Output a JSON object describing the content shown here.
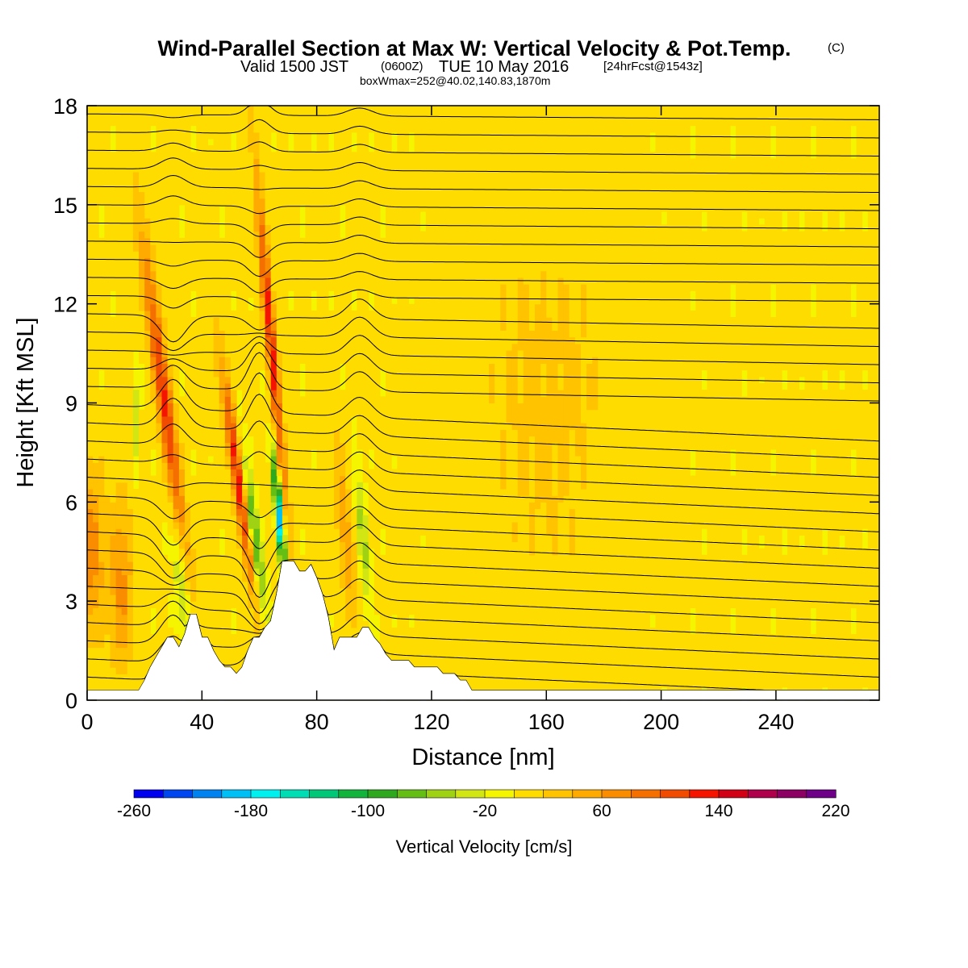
{
  "chart_data": {
    "type": "heatmap",
    "title": "Wind-Parallel Section at Max W: Vertical Velocity & Pot.Temp.",
    "title_mark": "(C)",
    "valid_prefix": "Valid 1500 JST",
    "valid_utc": "(0600Z)",
    "valid_date": "TUE 10 May 2016",
    "forecast": "[24hrFcst@1543z]",
    "box_info": "boxWmax=252@40.02,140.83,1870m",
    "xlabel": "Distance [nm]",
    "ylabel": "Height [Kft MSL]",
    "xlim": [
      0,
      276
    ],
    "ylim": [
      0,
      18
    ],
    "x_ticks": [
      0,
      40,
      80,
      120,
      160,
      200,
      240
    ],
    "x_tick_labels": [
      "0",
      "40",
      "80",
      "120",
      "160",
      "200",
      "240"
    ],
    "y_ticks": [
      0,
      3,
      6,
      9,
      12,
      15,
      18
    ],
    "y_tick_labels": [
      "0",
      "3",
      "6",
      "9",
      "12",
      "15",
      "18"
    ],
    "colorbar": {
      "title": "Vertical Velocity [cm/s]",
      "min": -260,
      "max": 220,
      "step": 20,
      "tick_labels": [
        "-260",
        "-180",
        "-100",
        "-20",
        "60",
        "140",
        "220"
      ],
      "colors": [
        "#0000ee",
        "#0046f0",
        "#0082f0",
        "#00bff5",
        "#00f0f0",
        "#00dcb4",
        "#00c878",
        "#12b43c",
        "#2ea81e",
        "#64be14",
        "#a0d214",
        "#d2e614",
        "#f5f500",
        "#ffdc00",
        "#ffc300",
        "#ffaa00",
        "#fa8c00",
        "#f56e00",
        "#f04b00",
        "#f51400",
        "#d20014",
        "#af004b",
        "#8c0064",
        "#6e0087"
      ]
    },
    "terrain_kft": [
      [
        0,
        0.3
      ],
      [
        10,
        0.3
      ],
      [
        18,
        0.3
      ],
      [
        20,
        0.6
      ],
      [
        22,
        1.0
      ],
      [
        24,
        1.3
      ],
      [
        26,
        1.6
      ],
      [
        28,
        1.9
      ],
      [
        30,
        1.9
      ],
      [
        32,
        1.6
      ],
      [
        34,
        2.0
      ],
      [
        36,
        2.6
      ],
      [
        38,
        2.6
      ],
      [
        40,
        1.9
      ],
      [
        42,
        1.9
      ],
      [
        44,
        1.5
      ],
      [
        46,
        1.2
      ],
      [
        48,
        1.0
      ],
      [
        50,
        1.0
      ],
      [
        52,
        0.8
      ],
      [
        54,
        1.0
      ],
      [
        56,
        1.5
      ],
      [
        58,
        1.9
      ],
      [
        60,
        1.9
      ],
      [
        62,
        2.2
      ],
      [
        64,
        2.4
      ],
      [
        66,
        3.2
      ],
      [
        68,
        4.2
      ],
      [
        70,
        4.2
      ],
      [
        72,
        4.2
      ],
      [
        74,
        3.9
      ],
      [
        76,
        3.9
      ],
      [
        78,
        4.1
      ],
      [
        80,
        3.7
      ],
      [
        82,
        3.2
      ],
      [
        84,
        2.5
      ],
      [
        86,
        1.5
      ],
      [
        88,
        1.9
      ],
      [
        90,
        1.9
      ],
      [
        92,
        1.9
      ],
      [
        94,
        1.9
      ],
      [
        96,
        2.2
      ],
      [
        98,
        2.2
      ],
      [
        100,
        1.9
      ],
      [
        102,
        1.7
      ],
      [
        104,
        1.4
      ],
      [
        106,
        1.2
      ],
      [
        108,
        1.2
      ],
      [
        110,
        1.2
      ],
      [
        112,
        1.2
      ],
      [
        114,
        1.0
      ],
      [
        116,
        1.0
      ],
      [
        118,
        1.0
      ],
      [
        120,
        1.0
      ],
      [
        122,
        1.0
      ],
      [
        124,
        0.8
      ],
      [
        126,
        0.8
      ],
      [
        128,
        0.8
      ],
      [
        130,
        0.6
      ],
      [
        132,
        0.6
      ],
      [
        134,
        0.3
      ],
      [
        136,
        0.3
      ],
      [
        140,
        0.3
      ],
      [
        276,
        0.3
      ]
    ],
    "updrafts": [
      {
        "x": 1,
        "z": 4.5,
        "amp": 70,
        "sx": 5,
        "sz": 2.5,
        "tilt": 0.0
      },
      {
        "x": 12,
        "z": 3.5,
        "amp": 60,
        "sx": 4,
        "sz": 2.5,
        "tilt": 0.0
      },
      {
        "x": 27,
        "z": 9.0,
        "amp": 125,
        "sx": 2.6,
        "sz": 5.0,
        "tilt": 1.5
      },
      {
        "x": 53,
        "z": 6.5,
        "amp": 140,
        "sx": 2.2,
        "sz": 3.5,
        "tilt": 1.6
      },
      {
        "x": 64,
        "z": 11.0,
        "amp": 130,
        "sx": 1.8,
        "sz": 5.0,
        "tilt": 1.0
      },
      {
        "x": 90,
        "z": 5.0,
        "amp": 50,
        "sx": 2.5,
        "sz": 3.0,
        "tilt": 1.0
      },
      {
        "x": 160,
        "z": 9.0,
        "amp": 20,
        "sx": 25,
        "sz": 6.0,
        "tilt": 0.0
      }
    ],
    "downdrafts": [
      {
        "x": 33,
        "z": 3.5,
        "amp": -50,
        "sx": 2.5,
        "sz": 2.5,
        "tilt": 1.2
      },
      {
        "x": 58,
        "z": 5.0,
        "amp": -110,
        "sx": 2.0,
        "sz": 2.5,
        "tilt": 1.5
      },
      {
        "x": 67,
        "z": 5.5,
        "amp": -200,
        "sx": 1.3,
        "sz": 1.8,
        "tilt": 1.0
      },
      {
        "x": 96,
        "z": 5.0,
        "amp": -50,
        "sx": 2.0,
        "sz": 2.5,
        "tilt": 1.0
      },
      {
        "x": 17,
        "z": 8.5,
        "amp": -40,
        "sx": 1.2,
        "sz": 1.5,
        "tilt": 0.0
      }
    ],
    "theta_contour_interval_c": 1,
    "theta_lapse_kft": 0.55
  }
}
